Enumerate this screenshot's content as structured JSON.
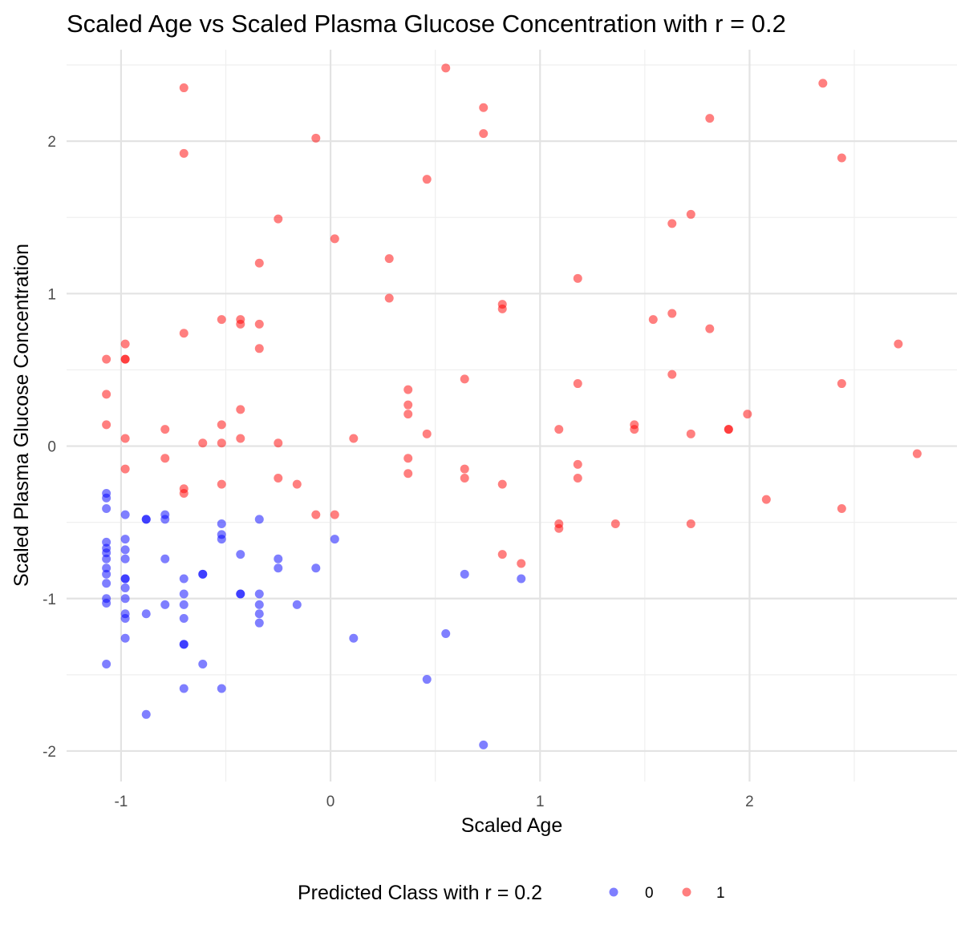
{
  "chart_data": {
    "type": "scatter",
    "title": "Scaled Age vs Scaled Plasma Glucose Concentration with r = 0.2",
    "xlabel": "Scaled Age",
    "ylabel": "Scaled Plasma Glucose Concentration",
    "xlim": [
      -1.26,
      2.99
    ],
    "ylim": [
      -2.2,
      2.6
    ],
    "x_ticks": [
      -1,
      0,
      1,
      2
    ],
    "y_ticks": [
      -2,
      -1,
      0,
      1,
      2
    ],
    "x_tick_labels": [
      "-1",
      "0",
      "1",
      "2"
    ],
    "y_tick_labels": [
      "-2",
      "-1",
      "0",
      "1",
      "2"
    ],
    "grid": true,
    "legend": {
      "title": "Predicted Class with r = 0.2",
      "position": "bottom",
      "entries": [
        "0",
        "1"
      ]
    },
    "series": [
      {
        "name": "0",
        "color": "#0000ff",
        "opacity": 0.5,
        "points": [
          [
            -1.07,
            -0.31
          ],
          [
            -1.07,
            -0.34
          ],
          [
            -1.07,
            -0.41
          ],
          [
            -1.07,
            -0.63
          ],
          [
            -1.07,
            -0.67
          ],
          [
            -1.07,
            -0.7
          ],
          [
            -1.07,
            -0.74
          ],
          [
            -1.07,
            -0.8
          ],
          [
            -1.07,
            -0.84
          ],
          [
            -1.07,
            -0.9
          ],
          [
            -1.07,
            -1.0
          ],
          [
            -1.07,
            -1.03
          ],
          [
            -1.07,
            -1.43
          ],
          [
            -0.98,
            -0.45
          ],
          [
            -0.98,
            -0.61
          ],
          [
            -0.98,
            -0.68
          ],
          [
            -0.98,
            -0.74
          ],
          [
            -0.98,
            -0.87
          ],
          [
            -0.98,
            -0.87
          ],
          [
            -0.98,
            -0.93
          ],
          [
            -0.98,
            -1.0
          ],
          [
            -0.98,
            -1.1
          ],
          [
            -0.98,
            -1.13
          ],
          [
            -0.98,
            -1.26
          ],
          [
            -0.88,
            -0.48
          ],
          [
            -0.88,
            -0.48
          ],
          [
            -0.88,
            -1.1
          ],
          [
            -0.88,
            -1.76
          ],
          [
            -0.79,
            -0.45
          ],
          [
            -0.79,
            -0.48
          ],
          [
            -0.79,
            -0.74
          ],
          [
            -0.79,
            -1.04
          ],
          [
            -0.7,
            -0.87
          ],
          [
            -0.7,
            -0.97
          ],
          [
            -0.7,
            -1.04
          ],
          [
            -0.7,
            -1.13
          ],
          [
            -0.7,
            -1.3
          ],
          [
            -0.7,
            -1.3
          ],
          [
            -0.7,
            -1.59
          ],
          [
            -0.61,
            -0.84
          ],
          [
            -0.61,
            -0.84
          ],
          [
            -0.61,
            -1.43
          ],
          [
            -0.52,
            -0.51
          ],
          [
            -0.52,
            -0.58
          ],
          [
            -0.52,
            -0.61
          ],
          [
            -0.52,
            -1.59
          ],
          [
            -0.43,
            -0.71
          ],
          [
            -0.43,
            -0.97
          ],
          [
            -0.43,
            -0.97
          ],
          [
            -0.34,
            -0.48
          ],
          [
            -0.34,
            -0.97
          ],
          [
            -0.34,
            -1.04
          ],
          [
            -0.34,
            -1.1
          ],
          [
            -0.34,
            -1.16
          ],
          [
            -0.25,
            -0.74
          ],
          [
            -0.25,
            -0.8
          ],
          [
            -0.16,
            -1.04
          ],
          [
            -0.07,
            -0.8
          ],
          [
            0.02,
            -0.61
          ],
          [
            0.11,
            -1.26
          ],
          [
            0.46,
            -1.53
          ],
          [
            0.55,
            -1.23
          ],
          [
            0.64,
            -0.84
          ],
          [
            0.73,
            -1.96
          ],
          [
            0.91,
            -0.87
          ]
        ]
      },
      {
        "name": "1",
        "color": "#ff0000",
        "opacity": 0.5,
        "points": [
          [
            -1.07,
            0.57
          ],
          [
            -1.07,
            0.34
          ],
          [
            -1.07,
            0.14
          ],
          [
            -0.98,
            0.67
          ],
          [
            -0.98,
            0.57
          ],
          [
            -0.98,
            0.57
          ],
          [
            -0.98,
            0.05
          ],
          [
            -0.98,
            -0.15
          ],
          [
            -0.79,
            0.11
          ],
          [
            -0.79,
            -0.08
          ],
          [
            -0.7,
            2.35
          ],
          [
            -0.7,
            1.92
          ],
          [
            -0.7,
            0.74
          ],
          [
            -0.7,
            -0.28
          ],
          [
            -0.7,
            -0.31
          ],
          [
            -0.61,
            0.02
          ],
          [
            -0.52,
            0.83
          ],
          [
            -0.52,
            0.14
          ],
          [
            -0.52,
            0.02
          ],
          [
            -0.52,
            -0.25
          ],
          [
            -0.43,
            0.83
          ],
          [
            -0.43,
            0.8
          ],
          [
            -0.43,
            0.24
          ],
          [
            -0.43,
            0.05
          ],
          [
            -0.34,
            1.2
          ],
          [
            -0.34,
            0.8
          ],
          [
            -0.34,
            0.64
          ],
          [
            -0.25,
            1.49
          ],
          [
            -0.25,
            0.02
          ],
          [
            -0.25,
            -0.21
          ],
          [
            -0.16,
            -0.25
          ],
          [
            -0.07,
            2.02
          ],
          [
            -0.07,
            -0.45
          ],
          [
            0.02,
            1.36
          ],
          [
            0.02,
            -0.45
          ],
          [
            0.11,
            0.05
          ],
          [
            0.28,
            1.23
          ],
          [
            0.28,
            0.97
          ],
          [
            0.37,
            0.37
          ],
          [
            0.37,
            0.27
          ],
          [
            0.37,
            0.21
          ],
          [
            0.37,
            -0.08
          ],
          [
            0.37,
            -0.18
          ],
          [
            0.46,
            1.75
          ],
          [
            0.46,
            0.08
          ],
          [
            0.55,
            2.48
          ],
          [
            0.64,
            0.44
          ],
          [
            0.64,
            -0.15
          ],
          [
            0.64,
            -0.21
          ],
          [
            0.73,
            2.22
          ],
          [
            0.73,
            2.05
          ],
          [
            0.82,
            0.93
          ],
          [
            0.82,
            0.9
          ],
          [
            0.82,
            -0.25
          ],
          [
            0.82,
            -0.71
          ],
          [
            0.91,
            -0.77
          ],
          [
            1.09,
            0.11
          ],
          [
            1.09,
            -0.51
          ],
          [
            1.09,
            -0.54
          ],
          [
            1.18,
            1.1
          ],
          [
            1.18,
            0.41
          ],
          [
            1.18,
            -0.12
          ],
          [
            1.18,
            -0.21
          ],
          [
            1.36,
            -0.51
          ],
          [
            1.45,
            0.14
          ],
          [
            1.45,
            0.11
          ],
          [
            1.54,
            0.83
          ],
          [
            1.63,
            1.46
          ],
          [
            1.63,
            0.87
          ],
          [
            1.63,
            0.47
          ],
          [
            1.72,
            1.52
          ],
          [
            1.72,
            0.08
          ],
          [
            1.72,
            -0.51
          ],
          [
            1.81,
            2.15
          ],
          [
            1.81,
            0.77
          ],
          [
            1.9,
            0.11
          ],
          [
            1.9,
            0.11
          ],
          [
            1.99,
            0.21
          ],
          [
            2.08,
            -0.35
          ],
          [
            2.35,
            2.38
          ],
          [
            2.44,
            1.89
          ],
          [
            2.44,
            0.41
          ],
          [
            2.44,
            -0.41
          ],
          [
            2.71,
            0.67
          ],
          [
            2.8,
            -0.05
          ]
        ]
      }
    ]
  }
}
